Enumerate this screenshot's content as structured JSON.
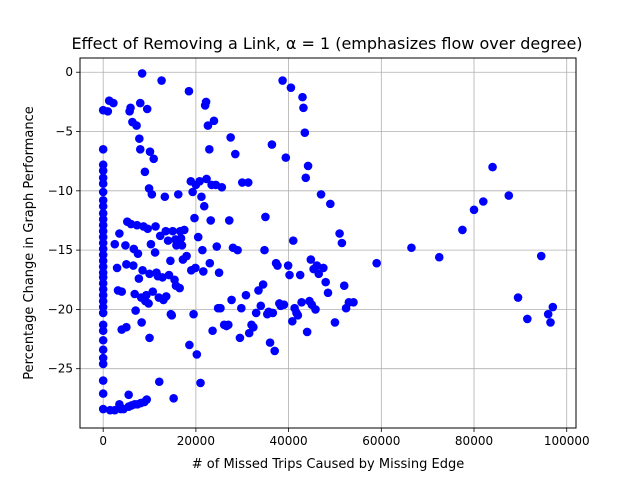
{
  "chart_data": {
    "type": "scatter",
    "title": "Effect of Removing a Link, α = 1 (emphasizes flow over degree)",
    "xlabel": "# of Missed Trips Caused by Missing Edge",
    "ylabel": "Percentage Change in Graph Performance",
    "xlim": [
      -5000,
      102000
    ],
    "ylim": [
      -30,
      1.2
    ],
    "xticks": [
      0,
      20000,
      40000,
      60000,
      80000,
      100000
    ],
    "yticks": [
      0,
      -5,
      -10,
      -15,
      -20,
      -25
    ],
    "grid": true,
    "marker_color": "#0000ff",
    "points": [
      [
        0,
        -3.2
      ],
      [
        0,
        -6.5
      ],
      [
        0,
        -7.8
      ],
      [
        0,
        -8.3
      ],
      [
        0,
        -8.9
      ],
      [
        0,
        -9.4
      ],
      [
        0,
        -10.1
      ],
      [
        0,
        -10.8
      ],
      [
        0,
        -11.3
      ],
      [
        0,
        -11.9
      ],
      [
        0,
        -12.4
      ],
      [
        0,
        -12.9
      ],
      [
        0,
        -13.4
      ],
      [
        0,
        -13.9
      ],
      [
        0,
        -14.4
      ],
      [
        0,
        -14.9
      ],
      [
        0,
        -15.4
      ],
      [
        0,
        -15.9
      ],
      [
        0,
        -16.4
      ],
      [
        0,
        -16.9
      ],
      [
        0,
        -17.3
      ],
      [
        0,
        -17.8
      ],
      [
        0,
        -18.3
      ],
      [
        0,
        -18.8
      ],
      [
        0,
        -19.3
      ],
      [
        0,
        -19.8
      ],
      [
        0,
        -20.3
      ],
      [
        0,
        -21.3
      ],
      [
        0,
        -21.8
      ],
      [
        0,
        -22.6
      ],
      [
        0,
        -23.4
      ],
      [
        0,
        -24.1
      ],
      [
        0,
        -24.6
      ],
      [
        0,
        -26.0
      ],
      [
        0,
        -27.1
      ],
      [
        0,
        -28.4
      ],
      [
        1000,
        -3.3
      ],
      [
        1300,
        -2.4
      ],
      [
        2200,
        -2.6
      ],
      [
        2500,
        -14.5
      ],
      [
        1500,
        -28.5
      ],
      [
        2500,
        -28.5
      ],
      [
        3000,
        -16.5
      ],
      [
        3200,
        -18.4
      ],
      [
        3500,
        -13.6
      ],
      [
        3500,
        -28.0
      ],
      [
        3800,
        -28.4
      ],
      [
        4000,
        -21.7
      ],
      [
        4400,
        -28.4
      ],
      [
        4800,
        -14.6
      ],
      [
        4000,
        -18.5
      ],
      [
        5000,
        -21.5
      ],
      [
        5000,
        -16.2
      ],
      [
        5200,
        -12.6
      ],
      [
        5500,
        -28.2
      ],
      [
        5500,
        -27.2
      ],
      [
        5700,
        -3.3
      ],
      [
        5900,
        -3.0
      ],
      [
        6000,
        -12.8
      ],
      [
        6100,
        -28.1
      ],
      [
        6300,
        -4.2
      ],
      [
        6500,
        -16.3
      ],
      [
        6600,
        -14.9
      ],
      [
        6800,
        -18.7
      ],
      [
        6800,
        -28.0
      ],
      [
        7000,
        -20.1
      ],
      [
        7200,
        -4.5
      ],
      [
        7300,
        -12.9
      ],
      [
        7400,
        -28.0
      ],
      [
        7500,
        -15.3
      ],
      [
        7700,
        -17.4
      ],
      [
        7800,
        -5.6
      ],
      [
        8000,
        -6.5
      ],
      [
        8000,
        -2.6
      ],
      [
        8100,
        -27.9
      ],
      [
        8200,
        -19.0
      ],
      [
        8300,
        -21.1
      ],
      [
        8400,
        -0.1
      ],
      [
        8500,
        -16.7
      ],
      [
        8700,
        -13.0
      ],
      [
        8900,
        -27.8
      ],
      [
        9000,
        -8.4
      ],
      [
        9100,
        -19.3
      ],
      [
        9300,
        -18.8
      ],
      [
        9400,
        -27.6
      ],
      [
        9500,
        -3.1
      ],
      [
        9600,
        -13.2
      ],
      [
        9800,
        -19.5
      ],
      [
        9900,
        -9.8
      ],
      [
        10000,
        -17.0
      ],
      [
        10000,
        -22.4
      ],
      [
        10100,
        -6.7
      ],
      [
        10300,
        -14.5
      ],
      [
        10500,
        -10.3
      ],
      [
        10700,
        -18.5
      ],
      [
        10900,
        -7.3
      ],
      [
        11200,
        -15.2
      ],
      [
        11300,
        -13.0
      ],
      [
        11500,
        -16.9
      ],
      [
        11800,
        -17.2
      ],
      [
        12000,
        -19.0
      ],
      [
        12100,
        -26.1
      ],
      [
        12300,
        -13.8
      ],
      [
        12600,
        -0.7
      ],
      [
        12800,
        -17.3
      ],
      [
        13000,
        -19.2
      ],
      [
        13300,
        -10.5
      ],
      [
        13500,
        -13.4
      ],
      [
        13600,
        -18.9
      ],
      [
        14000,
        -14.2
      ],
      [
        14200,
        -17.1
      ],
      [
        14500,
        -15.9
      ],
      [
        14600,
        -20.4
      ],
      [
        14800,
        -20.5
      ],
      [
        15000,
        -13.4
      ],
      [
        15200,
        -27.5
      ],
      [
        15400,
        -17.5
      ],
      [
        15600,
        -14.1
      ],
      [
        15700,
        -18.0
      ],
      [
        15800,
        -14.6
      ],
      [
        15900,
        -14.3
      ],
      [
        16200,
        -10.3
      ],
      [
        16500,
        -18.2
      ],
      [
        16600,
        -13.4
      ],
      [
        16800,
        -14.0
      ],
      [
        17000,
        -14.6
      ],
      [
        17200,
        -15.8
      ],
      [
        17500,
        -13.3
      ],
      [
        18000,
        -15.5
      ],
      [
        18500,
        -1.6
      ],
      [
        18600,
        -23.0
      ],
      [
        18900,
        -9.2
      ],
      [
        19000,
        -16.7
      ],
      [
        19300,
        -10.1
      ],
      [
        19500,
        -20.4
      ],
      [
        19700,
        -12.3
      ],
      [
        19900,
        -16.5
      ],
      [
        20000,
        -9.5
      ],
      [
        20200,
        -23.8
      ],
      [
        20500,
        -13.9
      ],
      [
        20800,
        -9.2
      ],
      [
        21000,
        -26.2
      ],
      [
        21200,
        -10.5
      ],
      [
        21400,
        -15.0
      ],
      [
        21600,
        -16.8
      ],
      [
        21800,
        -11.3
      ],
      [
        22000,
        -2.8
      ],
      [
        22200,
        -2.5
      ],
      [
        22300,
        -9.0
      ],
      [
        22600,
        -4.5
      ],
      [
        22900,
        -6.5
      ],
      [
        23000,
        -16.1
      ],
      [
        23200,
        -12.5
      ],
      [
        23400,
        -9.5
      ],
      [
        23600,
        -21.8
      ],
      [
        23900,
        -4.1
      ],
      [
        24300,
        -9.5
      ],
      [
        24500,
        -14.7
      ],
      [
        24800,
        -19.9
      ],
      [
        25000,
        -16.9
      ],
      [
        25300,
        -19.9
      ],
      [
        25600,
        -9.7
      ],
      [
        26100,
        -21.3
      ],
      [
        26600,
        -21.4
      ],
      [
        27000,
        -21.3
      ],
      [
        27200,
        -12.5
      ],
      [
        27500,
        -5.5
      ],
      [
        27700,
        -19.2
      ],
      [
        28000,
        -14.8
      ],
      [
        28500,
        -6.9
      ],
      [
        29000,
        -15.0
      ],
      [
        29500,
        -22.4
      ],
      [
        29800,
        -19.9
      ],
      [
        30000,
        -9.3
      ],
      [
        30800,
        -18.8
      ],
      [
        31300,
        -9.3
      ],
      [
        31500,
        -22.0
      ],
      [
        32000,
        -21.3
      ],
      [
        32400,
        -21.5
      ],
      [
        33000,
        -20.3
      ],
      [
        33500,
        -18.4
      ],
      [
        34000,
        -19.7
      ],
      [
        34500,
        -17.9
      ],
      [
        34800,
        -15.0
      ],
      [
        35000,
        -12.2
      ],
      [
        35400,
        -20.4
      ],
      [
        35700,
        -20.2
      ],
      [
        36000,
        -22.8
      ],
      [
        36400,
        -6.1
      ],
      [
        36600,
        -20.3
      ],
      [
        37000,
        -23.5
      ],
      [
        37300,
        -16.1
      ],
      [
        37600,
        -16.3
      ],
      [
        38000,
        -19.5
      ],
      [
        38300,
        -19.7
      ],
      [
        38700,
        -0.7
      ],
      [
        39000,
        -19.6
      ],
      [
        39400,
        -7.2
      ],
      [
        39900,
        -16.3
      ],
      [
        40200,
        -17.1
      ],
      [
        40500,
        -1.3
      ],
      [
        40800,
        -21.0
      ],
      [
        41000,
        -14.2
      ],
      [
        41300,
        -19.9
      ],
      [
        41700,
        -20.3
      ],
      [
        42000,
        -20.5
      ],
      [
        42500,
        -17.1
      ],
      [
        42800,
        -19.4
      ],
      [
        43000,
        -2.1
      ],
      [
        43200,
        -3.0
      ],
      [
        43500,
        -5.1
      ],
      [
        43700,
        -8.9
      ],
      [
        44000,
        -21.9
      ],
      [
        44200,
        -7.9
      ],
      [
        44500,
        -19.3
      ],
      [
        44800,
        -15.8
      ],
      [
        45000,
        -19.6
      ],
      [
        45400,
        -16.6
      ],
      [
        45800,
        -20.0
      ],
      [
        46100,
        -16.3
      ],
      [
        46500,
        -17.0
      ],
      [
        47000,
        -10.3
      ],
      [
        47500,
        -16.5
      ],
      [
        48000,
        -17.7
      ],
      [
        48500,
        -18.6
      ],
      [
        49000,
        -11.1
      ],
      [
        50000,
        -21.1
      ],
      [
        51000,
        -13.6
      ],
      [
        51500,
        -14.4
      ],
      [
        52000,
        -18.0
      ],
      [
        52400,
        -19.9
      ],
      [
        53000,
        -19.4
      ],
      [
        54000,
        -19.4
      ],
      [
        59000,
        -16.1
      ],
      [
        66500,
        -14.8
      ],
      [
        72500,
        -15.6
      ],
      [
        77500,
        -13.3
      ],
      [
        80000,
        -11.6
      ],
      [
        82000,
        -10.9
      ],
      [
        84000,
        -8.0
      ],
      [
        87500,
        -10.4
      ],
      [
        89500,
        -19.0
      ],
      [
        91500,
        -20.8
      ],
      [
        94500,
        -15.5
      ],
      [
        96000,
        -20.4
      ],
      [
        96500,
        -21.1
      ],
      [
        97000,
        -19.8
      ]
    ]
  }
}
